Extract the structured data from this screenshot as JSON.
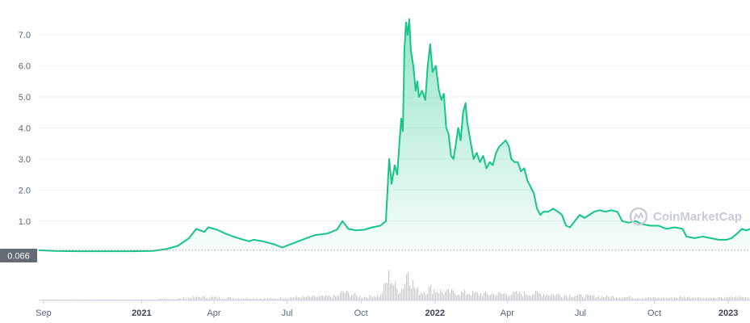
{
  "watermark": {
    "text": "CoinMarketCap",
    "icon": "coinmarketcap-logo-icon",
    "color": "#c8ccd4"
  },
  "current_price_badge": {
    "label": "0.066",
    "color": "#646b75"
  },
  "colors": {
    "line": "#16c784",
    "fill_top": "#16c784",
    "volume": "#c5c9d1",
    "grid": "#eff2f5",
    "axis": "#cfd6e4"
  },
  "chart_data": {
    "type": "area",
    "title": "",
    "xlabel": "",
    "ylabel": "",
    "grid": true,
    "ylim": [
      -0.15,
      7.6
    ],
    "xlim": [
      "2020-08-26",
      "2023-01-28"
    ],
    "y_ticks": [
      "1.0",
      "2.0",
      "3.0",
      "4.0",
      "5.0",
      "6.0",
      "7.0"
    ],
    "x_ticks": [
      {
        "date": "2020-09-01",
        "label": "Sep",
        "major": false
      },
      {
        "date": "2021-01-01",
        "label": "2021",
        "major": true
      },
      {
        "date": "2021-04-01",
        "label": "Apr",
        "major": false
      },
      {
        "date": "2021-07-01",
        "label": "Jul",
        "major": false
      },
      {
        "date": "2021-10-01",
        "label": "Oct",
        "major": false
      },
      {
        "date": "2022-01-01",
        "label": "2022",
        "major": true
      },
      {
        "date": "2022-04-01",
        "label": "Apr",
        "major": false
      },
      {
        "date": "2022-07-01",
        "label": "Jul",
        "major": false
      },
      {
        "date": "2022-10-01",
        "label": "Oct",
        "major": false
      },
      {
        "date": "2023-01-01",
        "label": "2023",
        "major": true
      }
    ],
    "series": [
      {
        "points": [
          [
            "2020-08-26",
            0.06
          ],
          [
            "2020-09-15",
            0.04
          ],
          [
            "2020-10-15",
            0.03
          ],
          [
            "2020-11-15",
            0.03
          ],
          [
            "2020-12-15",
            0.03
          ],
          [
            "2021-01-15",
            0.04
          ],
          [
            "2021-02-01",
            0.1
          ],
          [
            "2021-02-15",
            0.2
          ],
          [
            "2021-03-01",
            0.45
          ],
          [
            "2021-03-10",
            0.75
          ],
          [
            "2021-03-20",
            0.65
          ],
          [
            "2021-03-25",
            0.8
          ],
          [
            "2021-04-05",
            0.72
          ],
          [
            "2021-04-15",
            0.6
          ],
          [
            "2021-04-25",
            0.5
          ],
          [
            "2021-05-05",
            0.42
          ],
          [
            "2021-05-15",
            0.35
          ],
          [
            "2021-05-20",
            0.4
          ],
          [
            "2021-06-01",
            0.35
          ],
          [
            "2021-06-15",
            0.25
          ],
          [
            "2021-06-25",
            0.15
          ],
          [
            "2021-07-05",
            0.25
          ],
          [
            "2021-07-15",
            0.35
          ],
          [
            "2021-07-25",
            0.45
          ],
          [
            "2021-08-05",
            0.55
          ],
          [
            "2021-08-20",
            0.6
          ],
          [
            "2021-09-01",
            0.72
          ],
          [
            "2021-09-08",
            1.0
          ],
          [
            "2021-09-15",
            0.75
          ],
          [
            "2021-09-25",
            0.7
          ],
          [
            "2021-10-05",
            0.72
          ],
          [
            "2021-10-15",
            0.8
          ],
          [
            "2021-10-25",
            0.85
          ],
          [
            "2021-11-01",
            1.0
          ],
          [
            "2021-11-05",
            3.0
          ],
          [
            "2021-11-08",
            2.2
          ],
          [
            "2021-11-12",
            2.8
          ],
          [
            "2021-11-15",
            2.5
          ],
          [
            "2021-11-18",
            3.6
          ],
          [
            "2021-11-20",
            4.3
          ],
          [
            "2021-11-22",
            3.9
          ],
          [
            "2021-11-24",
            6.5
          ],
          [
            "2021-11-26",
            7.4
          ],
          [
            "2021-11-28",
            7.0
          ],
          [
            "2021-11-30",
            7.5
          ],
          [
            "2021-12-02",
            6.5
          ],
          [
            "2021-12-05",
            6.0
          ],
          [
            "2021-12-08",
            5.2
          ],
          [
            "2021-12-10",
            5.5
          ],
          [
            "2021-12-12",
            5.0
          ],
          [
            "2021-12-16",
            5.2
          ],
          [
            "2021-12-20",
            4.9
          ],
          [
            "2021-12-23",
            6.0
          ],
          [
            "2021-12-26",
            6.7
          ],
          [
            "2021-12-29",
            5.8
          ],
          [
            "2022-01-02",
            6.0
          ],
          [
            "2022-01-06",
            5.2
          ],
          [
            "2022-01-09",
            4.9
          ],
          [
            "2022-01-12",
            5.1
          ],
          [
            "2022-01-15",
            4.0
          ],
          [
            "2022-01-18",
            3.8
          ],
          [
            "2022-01-21",
            3.1
          ],
          [
            "2022-01-24",
            3.0
          ],
          [
            "2022-01-27",
            3.5
          ],
          [
            "2022-01-30",
            4.0
          ],
          [
            "2022-02-02",
            3.6
          ],
          [
            "2022-02-05",
            4.5
          ],
          [
            "2022-02-08",
            4.8
          ],
          [
            "2022-02-10",
            4.2
          ],
          [
            "2022-02-14",
            3.6
          ],
          [
            "2022-02-18",
            3.0
          ],
          [
            "2022-02-22",
            3.2
          ],
          [
            "2022-02-26",
            2.9
          ],
          [
            "2022-03-02",
            3.1
          ],
          [
            "2022-03-06",
            2.7
          ],
          [
            "2022-03-10",
            2.9
          ],
          [
            "2022-03-14",
            2.8
          ],
          [
            "2022-03-18",
            3.2
          ],
          [
            "2022-03-22",
            3.4
          ],
          [
            "2022-03-26",
            3.5
          ],
          [
            "2022-03-30",
            3.6
          ],
          [
            "2022-04-03",
            3.4
          ],
          [
            "2022-04-06",
            3.0
          ],
          [
            "2022-04-10",
            2.9
          ],
          [
            "2022-04-14",
            2.9
          ],
          [
            "2022-04-18",
            2.6
          ],
          [
            "2022-04-22",
            2.7
          ],
          [
            "2022-04-26",
            2.3
          ],
          [
            "2022-04-30",
            2.1
          ],
          [
            "2022-05-04",
            1.9
          ],
          [
            "2022-05-08",
            1.4
          ],
          [
            "2022-05-12",
            1.2
          ],
          [
            "2022-05-16",
            1.3
          ],
          [
            "2022-05-22",
            1.3
          ],
          [
            "2022-05-28",
            1.4
          ],
          [
            "2022-06-03",
            1.3
          ],
          [
            "2022-06-08",
            1.2
          ],
          [
            "2022-06-13",
            0.85
          ],
          [
            "2022-06-18",
            0.8
          ],
          [
            "2022-06-24",
            1.0
          ],
          [
            "2022-06-30",
            1.2
          ],
          [
            "2022-07-06",
            1.1
          ],
          [
            "2022-07-12",
            1.2
          ],
          [
            "2022-07-18",
            1.3
          ],
          [
            "2022-07-25",
            1.35
          ],
          [
            "2022-08-01",
            1.3
          ],
          [
            "2022-08-08",
            1.35
          ],
          [
            "2022-08-16",
            1.3
          ],
          [
            "2022-08-22",
            1.0
          ],
          [
            "2022-08-30",
            0.95
          ],
          [
            "2022-09-08",
            1.0
          ],
          [
            "2022-09-16",
            0.9
          ],
          [
            "2022-09-26",
            0.85
          ],
          [
            "2022-10-06",
            0.85
          ],
          [
            "2022-10-16",
            0.75
          ],
          [
            "2022-10-26",
            0.8
          ],
          [
            "2022-11-05",
            0.75
          ],
          [
            "2022-11-10",
            0.5
          ],
          [
            "2022-11-20",
            0.45
          ],
          [
            "2022-11-30",
            0.5
          ],
          [
            "2022-12-10",
            0.45
          ],
          [
            "2022-12-20",
            0.4
          ],
          [
            "2022-12-30",
            0.4
          ],
          [
            "2023-01-05",
            0.45
          ],
          [
            "2023-01-12",
            0.6
          ],
          [
            "2023-01-18",
            0.75
          ],
          [
            "2023-01-24",
            0.7
          ],
          [
            "2023-01-28",
            0.75
          ]
        ]
      }
    ],
    "volume": {
      "note": "relative trading volume histogram, peak = 1.0",
      "points": [
        [
          "2020-08-26",
          0.02
        ],
        [
          "2021-01-01",
          0.02
        ],
        [
          "2021-02-15",
          0.05
        ],
        [
          "2021-03-15",
          0.1
        ],
        [
          "2021-04-15",
          0.08
        ],
        [
          "2021-05-15",
          0.06
        ],
        [
          "2021-06-15",
          0.05
        ],
        [
          "2021-07-01",
          0.08
        ],
        [
          "2021-08-01",
          0.1
        ],
        [
          "2021-09-01",
          0.12
        ],
        [
          "2021-09-08",
          0.25
        ],
        [
          "2021-10-01",
          0.1
        ],
        [
          "2021-10-25",
          0.15
        ],
        [
          "2021-11-05",
          0.75
        ],
        [
          "2021-11-10",
          0.5
        ],
        [
          "2021-11-15",
          0.3
        ],
        [
          "2021-11-20",
          0.35
        ],
        [
          "2021-11-24",
          0.55
        ],
        [
          "2021-11-28",
          1.0
        ],
        [
          "2021-12-02",
          0.6
        ],
        [
          "2021-12-08",
          0.3
        ],
        [
          "2021-12-15",
          0.25
        ],
        [
          "2021-12-26",
          0.35
        ],
        [
          "2022-01-10",
          0.25
        ],
        [
          "2022-02-08",
          0.22
        ],
        [
          "2022-03-10",
          0.18
        ],
        [
          "2022-04-10",
          0.2
        ],
        [
          "2022-05-12",
          0.2
        ],
        [
          "2022-06-15",
          0.15
        ],
        [
          "2022-07-15",
          0.12
        ],
        [
          "2022-08-15",
          0.1
        ],
        [
          "2022-09-15",
          0.08
        ],
        [
          "2022-10-15",
          0.07
        ],
        [
          "2022-11-10",
          0.1
        ],
        [
          "2022-12-15",
          0.06
        ],
        [
          "2023-01-15",
          0.1
        ],
        [
          "2023-01-28",
          0.08
        ]
      ]
    }
  }
}
